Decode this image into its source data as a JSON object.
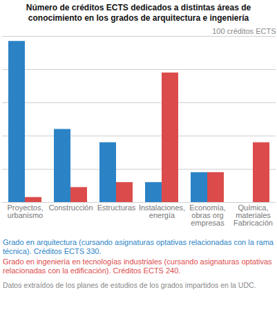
{
  "chart_data": {
    "type": "bar",
    "title": "Número de créditos ECTS dedicados a distintas áreas de conocimiento en los grados de arquitectura e ingeniería",
    "categories": [
      "Proyectos,\nurbanismo",
      "Construcción",
      "Estructuras",
      "Instalaciones,\nenergía",
      "Economía,\nobras org\nempresas",
      "Química,\nmateriales\nFabricación"
    ],
    "series": [
      {
        "name": "Grado en arquitectura (cursando asignaturas optativas relacionadas con la rama técnica). Créditos ECTS 330.",
        "color": "#2b83c6",
        "values": [
          97,
          44,
          36,
          12,
          18,
          0
        ]
      },
      {
        "name": "Grado en ingeniería en tecnologías industriales (cursando asignaturas optativas relacionadas con la edificación). Créditos ECTS 240.",
        "color": "#dc4b4b",
        "values": [
          3,
          9,
          12,
          78,
          18,
          36
        ]
      }
    ],
    "ylim": [
      0,
      100
    ],
    "yticks": [
      0,
      20,
      40,
      60,
      80,
      100
    ],
    "grid": true,
    "tick_labels": "x",
    "legend": "bottom",
    "annotations": [
      {
        "text": "100 créditos ECTS",
        "y": 100
      }
    ],
    "caption": "Datos extraídos de los planes de estudios de los grados impartidos en la UDC."
  }
}
